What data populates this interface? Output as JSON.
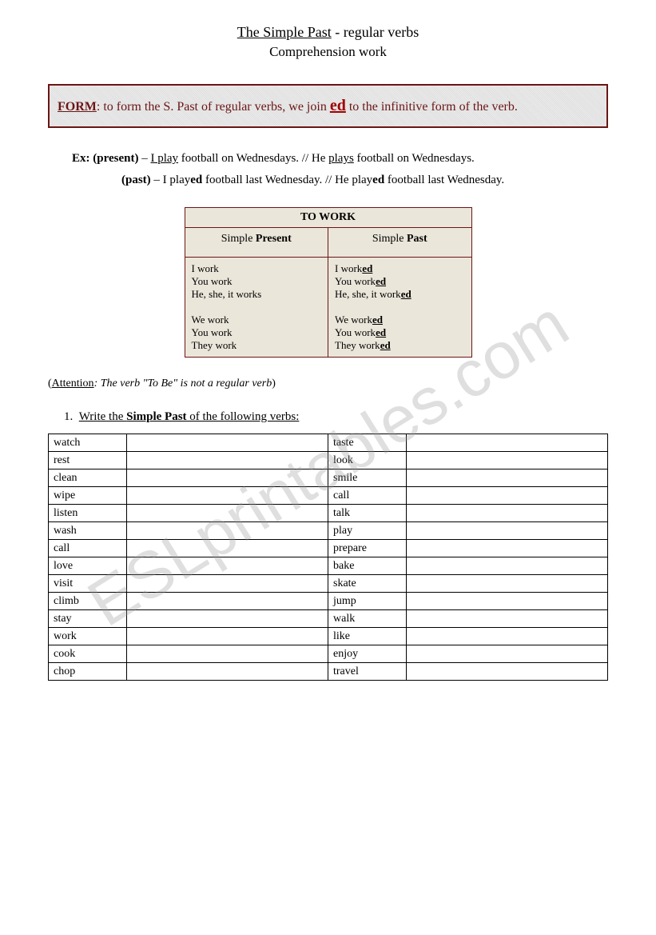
{
  "title": {
    "line1_underlined": "The Simple Past",
    "line1_rest": " - regular verbs",
    "line2": "Comprehension work"
  },
  "form_box": {
    "label": "FORM",
    "text_before": ":  to form the S. Past of regular verbs, we join ",
    "ed": "ed",
    "text_after": " to the infinitive form of the verb."
  },
  "examples": {
    "ex_label": "Ex: (present)",
    "ex_dash": " – ",
    "present_1a": "I play",
    "present_1b": " football on Wednesdays. // He ",
    "present_1c": "plays",
    "present_1d": " football on Wednesdays.",
    "past_label": "(past)",
    "past_1a": " – I play",
    "past_1b": "ed",
    "past_1c": " football last Wednesday. // He play",
    "past_1d": "ed",
    "past_1e": " football last Wednesday."
  },
  "conj": {
    "title": "TO WORK",
    "col1_label_a": "Simple ",
    "col1_label_b": "Present",
    "col2_label_a": "Simple ",
    "col2_label_b": "Past",
    "present": [
      "I work",
      "You work",
      "He, she, it works",
      "",
      "We work",
      "You work",
      "They work"
    ],
    "past_stems": [
      "I work",
      "You work",
      "He, she, it work",
      "",
      "We work",
      "You work",
      "They work"
    ],
    "ed": "ed"
  },
  "attention": {
    "label": "Attention",
    "text": ": The verb \"To Be\" is not a regular verb"
  },
  "exercise": {
    "num": "1.",
    "text_a": "Write the ",
    "text_b": "Simple Past",
    "text_c": " of the following verbs:"
  },
  "verbs": {
    "rows": [
      {
        "l": "watch",
        "r": "taste"
      },
      {
        "l": "rest",
        "r": "look"
      },
      {
        "l": "clean",
        "r": "smile"
      },
      {
        "l": "wipe",
        "r": "call"
      },
      {
        "l": "listen",
        "r": "talk"
      },
      {
        "l": "wash",
        "r": "play"
      },
      {
        "l": "call",
        "r": "prepare"
      },
      {
        "l": "love",
        "r": "bake"
      },
      {
        "l": "visit",
        "r": "skate"
      },
      {
        "l": "climb",
        "r": "jump"
      },
      {
        "l": "stay",
        "r": "walk"
      },
      {
        "l": "work",
        "r": "like"
      },
      {
        "l": "cook",
        "r": "enjoy"
      },
      {
        "l": "chop",
        "r": "travel"
      }
    ]
  },
  "watermark": "ESLprintables.com"
}
